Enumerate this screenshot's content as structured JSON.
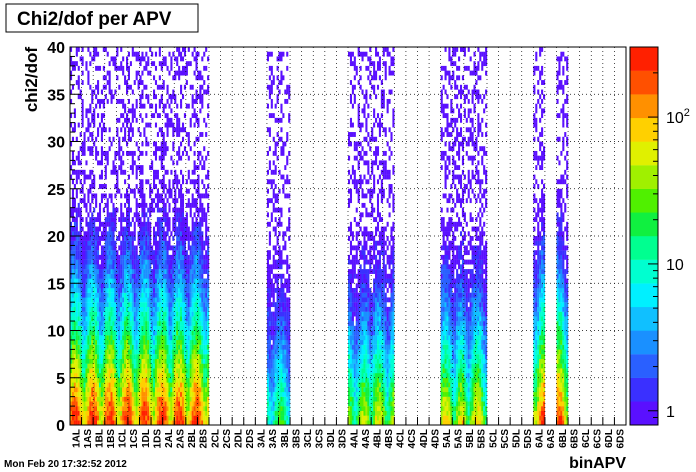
{
  "chart_data": {
    "type": "heatmap",
    "title": "Chi2/dof per APV",
    "xlabel": "binAPV",
    "ylabel": "chi2/dof",
    "ylim": [
      0,
      40
    ],
    "y_ticks": [
      0,
      5,
      10,
      15,
      20,
      25,
      30,
      35,
      40
    ],
    "grid": true,
    "color_scale": "log",
    "z_ticks": [
      {
        "value": 1,
        "label": "1"
      },
      {
        "value": 10,
        "label": "10"
      },
      {
        "value": 100,
        "label": "10",
        "sup": "2"
      }
    ],
    "zlim": [
      0.8,
      300
    ],
    "categories": [
      "1AL",
      "1AS",
      "1BL",
      "1BS",
      "1CL",
      "1CS",
      "1DL",
      "1DS",
      "2AL",
      "2AS",
      "2BL",
      "2BS",
      "2CL",
      "2CS",
      "2DL",
      "2DS",
      "3AL",
      "3AS",
      "3BL",
      "3BS",
      "3CL",
      "3CS",
      "3DL",
      "3DS",
      "4AL",
      "4AS",
      "4BL",
      "4BS",
      "4CL",
      "4CS",
      "4DL",
      "4DS",
      "5AL",
      "5AS",
      "5BL",
      "5BS",
      "5CL",
      "5CS",
      "5DL",
      "5DS",
      "6AL",
      "6AS",
      "6BL",
      "6BS",
      "6CL",
      "6CS",
      "6DL",
      "6DS"
    ],
    "occupied_ranges": [
      {
        "from": "1AL",
        "to": "2BS",
        "peak": 300,
        "note": "dense, peak near 1CL"
      },
      {
        "from": "3AS",
        "to": "3BL",
        "peak": 30
      },
      {
        "from": "4AL",
        "to": "4AS",
        "peak": 60
      },
      {
        "from": "4BL",
        "to": "4BS",
        "peak": 80
      },
      {
        "from": "5AL",
        "to": "5AS",
        "peak": 90
      },
      {
        "from": "5BL",
        "to": "5BS",
        "peak": 90
      },
      {
        "from": "6AL",
        "to": "6AL",
        "peak": 250
      },
      {
        "from": "6BL",
        "to": "6BL",
        "peak": 250
      }
    ]
  },
  "footer": {
    "timestamp": "Mon Feb 20 17:32:52 2012"
  },
  "colors": {
    "palette": [
      "#5a10ff",
      "#3a30ff",
      "#2a60ff",
      "#1a90ff",
      "#10c0ff",
      "#00f0ff",
      "#00ffd0",
      "#00ff90",
      "#10f040",
      "#50f000",
      "#a0f000",
      "#e0f000",
      "#ffd000",
      "#ff9000",
      "#ff5000",
      "#ff2000"
    ]
  }
}
